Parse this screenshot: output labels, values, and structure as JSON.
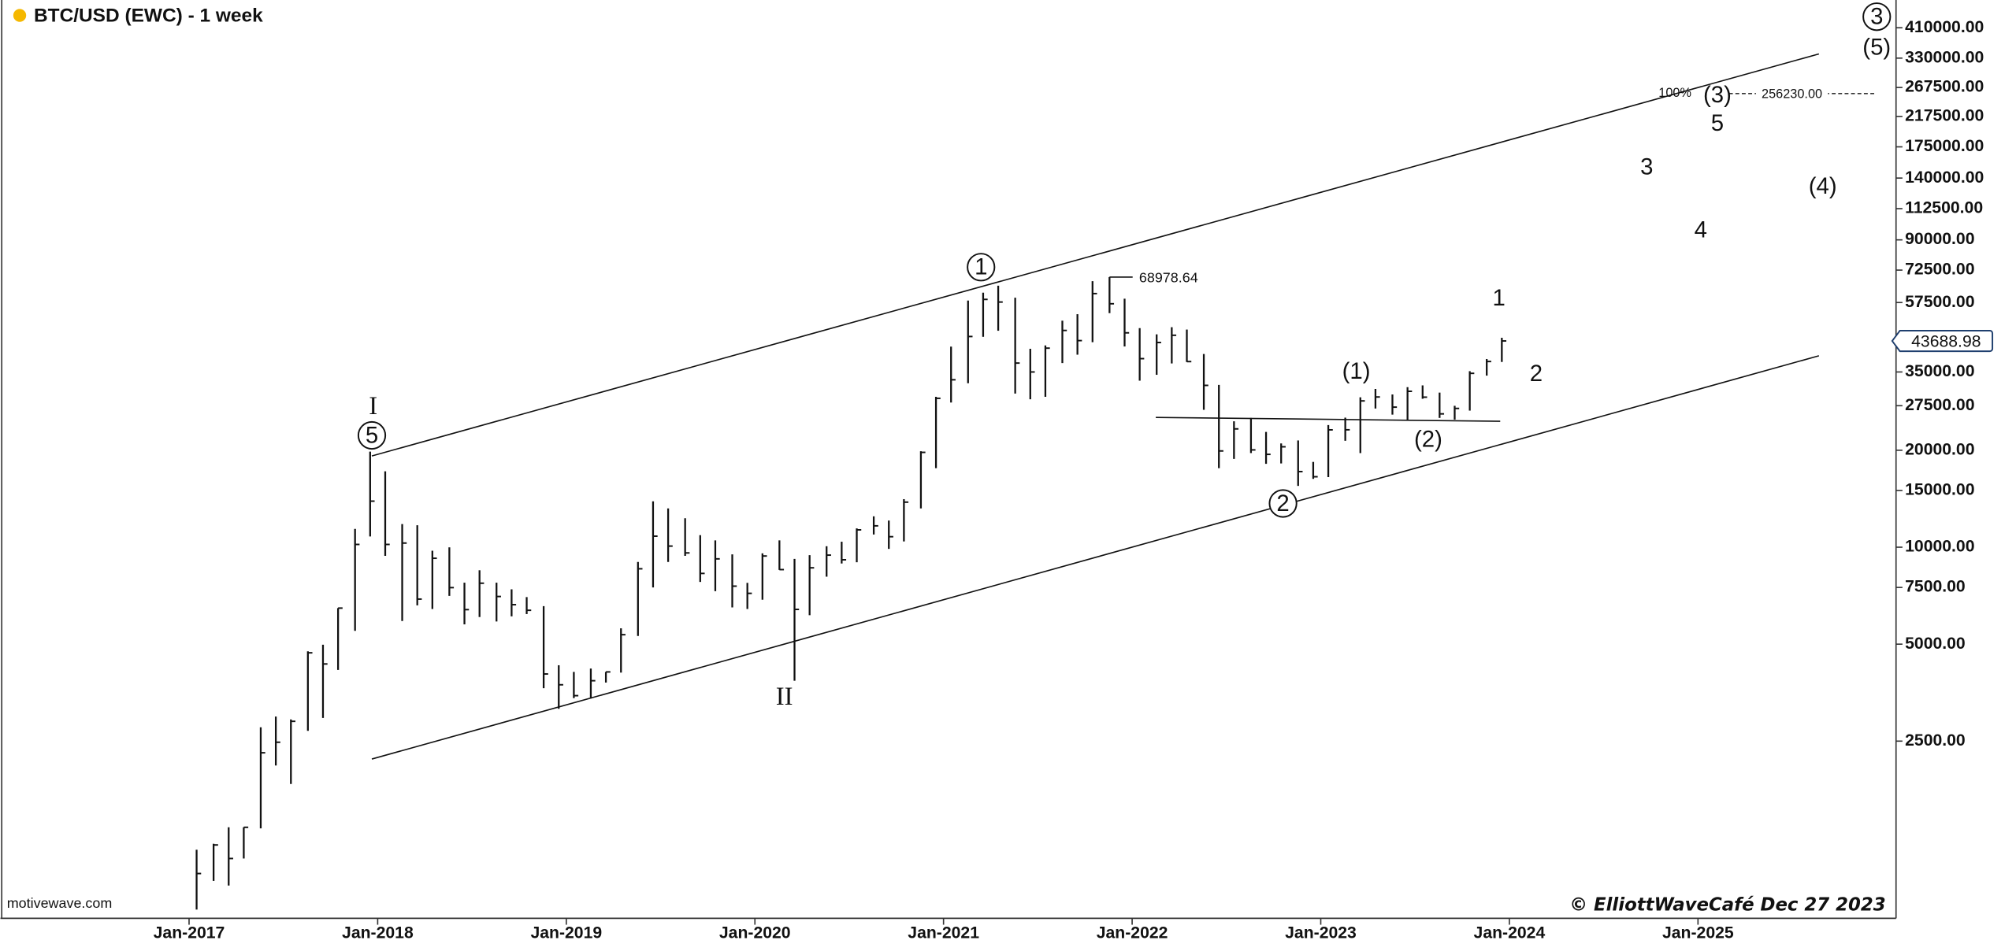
{
  "chart_data": {
    "type": "ohlc",
    "title": "BTC/USD (EWC) - 1 week",
    "log_scale": true,
    "color": "#111111",
    "x": [
      2017.04,
      2017.13,
      2017.21,
      2017.29,
      2017.38,
      2017.46,
      2017.54,
      2017.63,
      2017.71,
      2017.79,
      2017.88,
      2017.96,
      2018.04,
      2018.13,
      2018.21,
      2018.29,
      2018.38,
      2018.46,
      2018.54,
      2018.63,
      2018.71,
      2018.79,
      2018.88,
      2018.96,
      2019.04,
      2019.13,
      2019.21,
      2019.29,
      2019.38,
      2019.46,
      2019.54,
      2019.63,
      2019.71,
      2019.79,
      2019.88,
      2019.96,
      2020.04,
      2020.13,
      2020.21,
      2020.29,
      2020.38,
      2020.46,
      2020.54,
      2020.63,
      2020.71,
      2020.79,
      2020.88,
      2020.96,
      2021.04,
      2021.13,
      2021.21,
      2021.29,
      2021.38,
      2021.46,
      2021.54,
      2021.63,
      2021.71,
      2021.79,
      2021.88,
      2021.96,
      2022.04,
      2022.13,
      2022.21,
      2022.29,
      2022.38,
      2022.46,
      2022.54,
      2022.63,
      2022.71,
      2022.79,
      2022.88,
      2022.96,
      2023.04,
      2023.13,
      2023.21,
      2023.29,
      2023.38,
      2023.46,
      2023.54,
      2023.63,
      2023.71,
      2023.79,
      2023.88,
      2023.96
    ],
    "high": [
      1150,
      1200,
      1350,
      1350,
      2760,
      2980,
      2920,
      4750,
      4980,
      6470,
      11400,
      19800,
      17200,
      11800,
      11700,
      9750,
      9990,
      7760,
      8480,
      7760,
      7400,
      7000,
      6560,
      4300,
      4100,
      4200,
      4100,
      5600,
      9000,
      13880,
      13200,
      12300,
      10900,
      10500,
      9500,
      7750,
      9570,
      10500,
      9200,
      9450,
      10070,
      10400,
      11440,
      12470,
      12100,
      14100,
      19860,
      29300,
      41950,
      58300,
      61700,
      64850,
      59500,
      41300,
      42300,
      50500,
      52900,
      67000,
      68978.64,
      59100,
      47900,
      45800,
      48200,
      47400,
      39800,
      31900,
      24600,
      25200,
      22800,
      21000,
      21450,
      18400,
      23950,
      25250,
      29200,
      31000,
      29800,
      31400,
      31800,
      30200,
      27480,
      35200,
      38400,
      44700
    ],
    "low": [
      750,
      920,
      890,
      1080,
      1340,
      2100,
      1840,
      2690,
      2950,
      4160,
      5500,
      10800,
      9400,
      5900,
      6600,
      6430,
      7060,
      5760,
      6070,
      5880,
      6100,
      6200,
      3650,
      3150,
      3400,
      3390,
      3800,
      4080,
      5300,
      7500,
      9000,
      9400,
      7800,
      7300,
      6500,
      6430,
      6870,
      8500,
      3850,
      6150,
      8100,
      8900,
      8980,
      10950,
      9880,
      10420,
      13200,
      17600,
      28130,
      32300,
      45000,
      47000,
      30000,
      28800,
      29300,
      37300,
      39600,
      43300,
      53300,
      42000,
      32900,
      34300,
      37200,
      37600,
      26700,
      17600,
      18800,
      19600,
      18150,
      18200,
      15500,
      16300,
      16500,
      21400,
      19600,
      26950,
      25800,
      24800,
      28900,
      25200,
      24900,
      26550,
      34100,
      37600
    ],
    "close": [
      970,
      1190,
      1080,
      1350,
      2300,
      2480,
      2880,
      4700,
      4340,
      6470,
      10200,
      13900,
      10200,
      10300,
      6900,
      9240,
      7490,
      6400,
      7730,
      7030,
      6630,
      6370,
      4040,
      3740,
      3460,
      3850,
      4100,
      5350,
      8570,
      10820,
      10080,
      9600,
      8290,
      9200,
      7570,
      7190,
      9390,
      8520,
      6410,
      8630,
      9450,
      9140,
      11320,
      11650,
      10780,
      13800,
      19700,
      28990,
      33100,
      45100,
      58800,
      57700,
      37300,
      35000,
      41500,
      47100,
      43800,
      61300,
      57000,
      46300,
      38500,
      43200,
      45500,
      37700,
      31800,
      19900,
      23300,
      20050,
      19420,
      20500,
      17170,
      16550,
      23140,
      23150,
      28460,
      29270,
      27220,
      30480,
      29230,
      25940,
      26970,
      34660,
      37720,
      43688.98
    ],
    "xlim": [
      2016,
      2026.05
    ],
    "xticks": [
      {
        "value": 2017,
        "label": "Jan-2017"
      },
      {
        "value": 2018,
        "label": "Jan-2018"
      },
      {
        "value": 2019,
        "label": "Jan-2019"
      },
      {
        "value": 2020,
        "label": "Jan-2020"
      },
      {
        "value": 2021,
        "label": "Jan-2021"
      },
      {
        "value": 2022,
        "label": "Jan-2022"
      },
      {
        "value": 2023,
        "label": "Jan-2023"
      },
      {
        "value": 2024,
        "label": "Jan-2024"
      },
      {
        "value": 2025,
        "label": "Jan-2025"
      }
    ],
    "ylim": [
      720,
      500000
    ],
    "yticks": [
      {
        "value": 410000,
        "label": "410000.00"
      },
      {
        "value": 330000,
        "label": "330000.00"
      },
      {
        "value": 267500,
        "label": "267500.00"
      },
      {
        "value": 217500,
        "label": "217500.00"
      },
      {
        "value": 175000,
        "label": "175000.00"
      },
      {
        "value": 140000,
        "label": "140000.00"
      },
      {
        "value": 112500,
        "label": "112500.00"
      },
      {
        "value": 90000,
        "label": "90000.00"
      },
      {
        "value": 72500,
        "label": "72500.00"
      },
      {
        "value": 57500,
        "label": "57500.00"
      },
      {
        "value": 35000,
        "label": "35000.00"
      },
      {
        "value": 27500,
        "label": "27500.00"
      },
      {
        "value": 20000,
        "label": "20000.00"
      },
      {
        "value": 15000,
        "label": "15000.00"
      },
      {
        "value": 10000,
        "label": "10000.00"
      },
      {
        "value": 7500,
        "label": "7500.00"
      },
      {
        "value": 5000,
        "label": "5000.00"
      },
      {
        "value": 2500,
        "label": "2500.00"
      }
    ],
    "target": {
      "value": 256230,
      "label": "256230.00",
      "percent": "100%"
    },
    "annotations": [
      {
        "text": "I",
        "serif": true
      },
      {
        "text": "5",
        "circled": true
      },
      {
        "text": "1",
        "circled": true
      },
      {
        "text": "II",
        "serif": true
      },
      {
        "text": "2",
        "circled": true
      },
      {
        "text": "(1)"
      },
      {
        "text": "(2)"
      },
      {
        "text": "1"
      },
      {
        "text": "2"
      },
      {
        "text": "3"
      },
      {
        "text": "4"
      },
      {
        "text": "5"
      },
      {
        "text": "(3)"
      },
      {
        "text": "(4)"
      },
      {
        "text": "(5)"
      },
      {
        "text": "3",
        "circled": true
      }
    ],
    "source": "motivewave.com",
    "footer": "© ElliottWaveCafé Dec 27 2023"
  }
}
